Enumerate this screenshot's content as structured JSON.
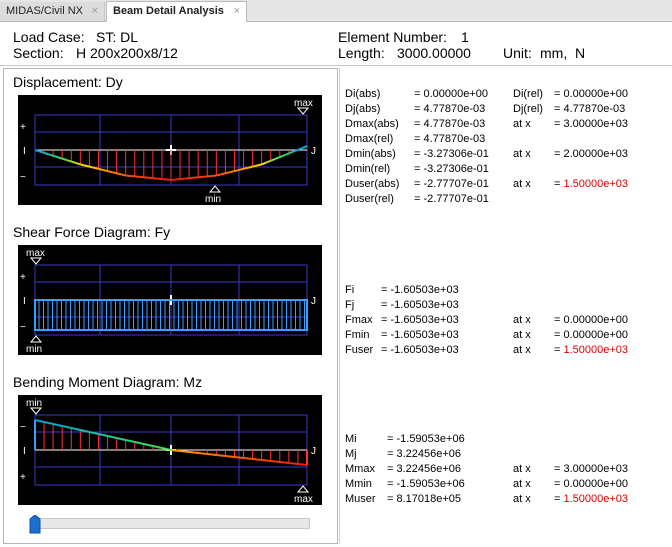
{
  "tabs": [
    {
      "label": "MIDAS/Civil NX",
      "close": "×"
    },
    {
      "label": "Beam Detail Analysis",
      "close": "×"
    }
  ],
  "header": {
    "load_case_label": "Load Case:",
    "load_case_value": "ST: DL",
    "section_label": "Section:",
    "section_value": "H 200x200x8/12",
    "element_label": "Element Number:",
    "element_value": "1",
    "length_label": "Length:",
    "length_value": "3000.00000",
    "unit_label": "Unit:",
    "unit_value": "mm,  N"
  },
  "diagrams": {
    "displacement": {
      "title": "Displacement: Dy",
      "labels": {
        "max": "max",
        "min": "min",
        "plus": "+",
        "minus": "−",
        "i": "I",
        "j": "J"
      },
      "curve": [
        0,
        -0.48,
        -0.85,
        -1.0,
        -0.85,
        -0.48,
        0.13
      ]
    },
    "shear": {
      "title": "Shear Force Diagram: Fy",
      "labels": {
        "max": "max",
        "min": "min",
        "plus": "+",
        "minus": "−",
        "i": "I",
        "j": "J"
      },
      "value": -1
    },
    "moment": {
      "title": "Bending Moment Diagram: Mz",
      "labels": {
        "max": "max",
        "min": "min",
        "plus": "+",
        "minus": "−",
        "i": "I",
        "j": "J"
      },
      "curve": [
        -1.0,
        0.0,
        0.5
      ]
    }
  },
  "results": {
    "displacement": [
      {
        "k1": "Di(abs)",
        "v1": "= 0.00000e+00",
        "k2": "Di(rel)",
        "v2": "= 0.00000e+00",
        "red": false
      },
      {
        "k1": "Dj(abs)",
        "v1": "= 4.77870e-03",
        "k2": "Dj(rel)",
        "v2": "= 4.77870e-03",
        "red": false
      },
      {
        "k1": "Dmax(abs)",
        "v1": "= 4.77870e-03",
        "k2": "at x",
        "v2": "= 3.00000e+03",
        "red": false
      },
      {
        "k1": "Dmax(rel)",
        "v1": "= 4.77870e-03",
        "k2": "",
        "v2": "",
        "red": false
      },
      {
        "k1": "Dmin(abs)",
        "v1": "= -3.27306e-01",
        "k2": "at x",
        "v2": "= 2.00000e+03",
        "red": false
      },
      {
        "k1": "Dmin(rel)",
        "v1": "= -3.27306e-01",
        "k2": "",
        "v2": "",
        "red": false
      },
      {
        "k1": "Duser(abs)",
        "v1": "= -2.77707e-01",
        "k2": "at x",
        "v2": "= ",
        "v2red": "1.50000e+03",
        "red": true
      },
      {
        "k1": "Duser(rel)",
        "v1": "= -2.77707e-01",
        "k2": "",
        "v2": "",
        "red": false
      }
    ],
    "shear": [
      {
        "k1": "Fi",
        "v1": "= -1.60503e+03",
        "k2": "",
        "v2": "",
        "red": false
      },
      {
        "k1": "Fj",
        "v1": "= -1.60503e+03",
        "k2": "",
        "v2": "",
        "red": false
      },
      {
        "k1": "Fmax",
        "v1": "= -1.60503e+03",
        "k2": "at x",
        "v2": "= 0.00000e+00",
        "red": false
      },
      {
        "k1": "Fmin",
        "v1": "= -1.60503e+03",
        "k2": "at x",
        "v2": "= 0.00000e+00",
        "red": false
      },
      {
        "k1": "Fuser",
        "v1": "= -1.60503e+03",
        "k2": "at x",
        "v2": "= ",
        "v2red": "1.50000e+03",
        "red": true
      }
    ],
    "moment": [
      {
        "k1": "Mi",
        "v1": "= -1.59053e+06",
        "k2": "",
        "v2": "",
        "red": false
      },
      {
        "k1": "Mj",
        "v1": "= 3.22456e+06",
        "k2": "",
        "v2": "",
        "red": false
      },
      {
        "k1": "Mmax",
        "v1": "= 3.22456e+06",
        "k2": "at x",
        "v2": "= 3.00000e+03",
        "red": false
      },
      {
        "k1": "Mmin",
        "v1": "= -1.59053e+06",
        "k2": "at x",
        "v2": "= 0.00000e+00",
        "red": false
      },
      {
        "k1": "Muser",
        "v1": "= 8.17018e+05",
        "k2": "at x",
        "v2": "= ",
        "v2red": "1.50000e+03",
        "red": true
      }
    ]
  },
  "slider": {
    "position": 0.0
  }
}
